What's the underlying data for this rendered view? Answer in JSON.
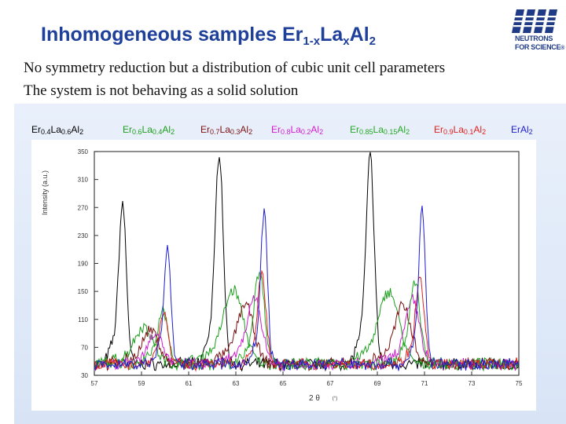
{
  "slide": {
    "title": {
      "parts": [
        {
          "text": "Inhomogeneous samples Er",
          "sub": false
        },
        {
          "text": "1-x",
          "sub": true
        },
        {
          "text": "La",
          "sub": false
        },
        {
          "text": "x",
          "sub": true
        },
        {
          "text": "Al",
          "sub": false
        },
        {
          "text": "2",
          "sub": true
        }
      ]
    },
    "subtitle_1": "No symmetry reduction but a distribution of cubic unit cell parameters",
    "subtitle_2": "The system is not behaving as a solid solution",
    "logo": {
      "icon": "ill-logo",
      "line1": "NEUTRONS",
      "line2": "FOR SCIENCE",
      "mark": "®",
      "color": "#1f3b86"
    }
  },
  "chart_data": {
    "type": "line",
    "xlabel": "2 θ",
    "xunit": "(°)",
    "ylabel": "Intensity (a.u.)",
    "xlim": [
      57,
      75
    ],
    "ylim": [
      30,
      350
    ],
    "xticks": [
      57,
      59,
      61,
      63,
      65,
      67,
      69,
      71,
      73,
      75
    ],
    "yticks": [
      30,
      70,
      110,
      150,
      190,
      230,
      270,
      310,
      350
    ],
    "grid": false,
    "legend_placement": "top",
    "series": [
      {
        "name": "Er0.4La0.6Al2",
        "parts": [
          [
            "Er",
            0
          ],
          [
            "0.4",
            1
          ],
          [
            "La",
            0
          ],
          [
            "0.6",
            1
          ],
          [
            "Al",
            0
          ],
          [
            "2",
            1
          ]
        ],
        "color": "#000000",
        "peaks": [
          [
            58.2,
            272,
            0.16
          ],
          [
            62.3,
            345,
            0.17
          ],
          [
            68.7,
            340,
            0.17
          ]
        ]
      },
      {
        "name": "Er0.6La0.4Al2",
        "parts": [
          [
            "Er",
            0
          ],
          [
            "0.6",
            1
          ],
          [
            "La",
            0
          ],
          [
            "0.4",
            1
          ],
          [
            "Al",
            0
          ],
          [
            "2",
            1
          ]
        ],
        "color": "#1a9e1a",
        "peaks": [
          [
            59.1,
            98,
            0.4
          ],
          [
            62.9,
            150,
            0.42
          ],
          [
            69.5,
            148,
            0.42
          ]
        ]
      },
      {
        "name": "Er0.7La0.3Al2",
        "parts": [
          [
            "Er",
            0
          ],
          [
            "0.7",
            1
          ],
          [
            "La",
            0
          ],
          [
            "0.3",
            1
          ],
          [
            "Al",
            0
          ],
          [
            "2",
            1
          ]
        ],
        "color": "#7a1010",
        "peaks": [
          [
            59.4,
            92,
            0.35
          ],
          [
            63.4,
            130,
            0.35
          ],
          [
            70.1,
            128,
            0.35
          ]
        ]
      },
      {
        "name": "Er0.8La0.2Al2",
        "parts": [
          [
            "Er",
            0
          ],
          [
            "0.8",
            1
          ],
          [
            "La",
            0
          ],
          [
            "0.2",
            1
          ],
          [
            "Al",
            0
          ],
          [
            "2",
            1
          ]
        ],
        "color": "#d11bd1",
        "peaks": [
          [
            59.6,
            90,
            0.3
          ],
          [
            63.8,
            140,
            0.3
          ],
          [
            70.5,
            135,
            0.3
          ]
        ]
      },
      {
        "name": "Er0.85La0.15Al2",
        "parts": [
          [
            "Er",
            0
          ],
          [
            "0.85",
            1
          ],
          [
            "La",
            0
          ],
          [
            "0.15",
            1
          ],
          [
            "Al",
            0
          ],
          [
            "2",
            1
          ]
        ],
        "color": "#23a823",
        "peaks": [
          [
            59.9,
            120,
            0.22
          ],
          [
            64.0,
            175,
            0.22
          ],
          [
            70.6,
            160,
            0.22
          ]
        ]
      },
      {
        "name": "Er0.9La0.1Al2",
        "parts": [
          [
            "Er",
            0
          ],
          [
            "0.9",
            1
          ],
          [
            "La",
            0
          ],
          [
            "0.1",
            1
          ],
          [
            "Al",
            0
          ],
          [
            "2",
            1
          ]
        ],
        "color": "#e0201c",
        "peaks": [
          [
            59.95,
            118,
            0.18
          ],
          [
            64.1,
            170,
            0.18
          ],
          [
            70.8,
            165,
            0.18
          ]
        ]
      },
      {
        "name": "ErAl2",
        "parts": [
          [
            "ErAl",
            0
          ],
          [
            "2",
            1
          ]
        ],
        "color": "#1c1cd0",
        "peaks": [
          [
            60.1,
            212,
            0.14
          ],
          [
            64.2,
            262,
            0.14
          ],
          [
            70.9,
            262,
            0.14
          ]
        ]
      }
    ]
  }
}
